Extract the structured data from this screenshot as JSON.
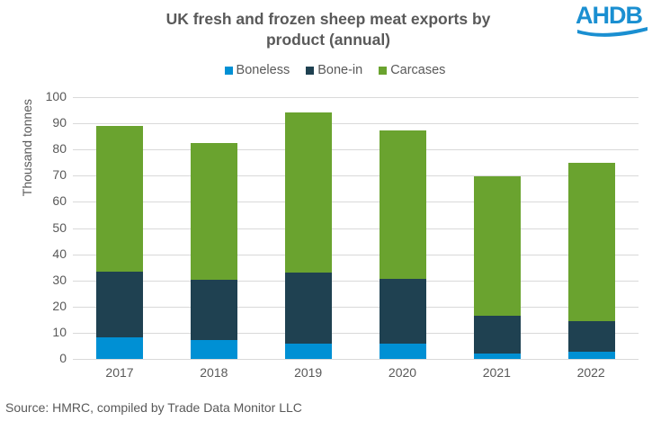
{
  "title": "UK fresh and frozen sheep meat exports by product (annual)",
  "title_lines": [
    "UK fresh and frozen sheep meat exports by",
    "product (annual)"
  ],
  "logo": {
    "text": "AHDB",
    "color": "#1a8fd1"
  },
  "legend": [
    {
      "label": "Boneless",
      "color": "#0090d4"
    },
    {
      "label": "Bone-in",
      "color": "#1f4151"
    },
    {
      "label": "Carcases",
      "color": "#6aa32f"
    }
  ],
  "source": "Source: HMRC, compiled by Trade Data Monitor LLC",
  "chart_data": {
    "type": "bar",
    "stacked": true,
    "title": "UK fresh and frozen sheep meat exports by product (annual)",
    "xlabel": "",
    "ylabel": "Thousand tonnes",
    "ylim": [
      0,
      100
    ],
    "yticks": [
      0,
      10,
      20,
      30,
      40,
      50,
      60,
      70,
      80,
      90,
      100
    ],
    "grid": true,
    "legend_position": "top",
    "categories": [
      "2017",
      "2018",
      "2019",
      "2020",
      "2021",
      "2022"
    ],
    "series": [
      {
        "name": "Boneless",
        "color": "#0090d4",
        "values": [
          8.2,
          7.3,
          5.8,
          6.0,
          2.1,
          2.7
        ]
      },
      {
        "name": "Bone-in",
        "color": "#1f4151",
        "values": [
          25.1,
          22.8,
          27.2,
          24.5,
          14.5,
          11.6
        ]
      },
      {
        "name": "Carcases",
        "color": "#6aa32f",
        "values": [
          55.7,
          52.3,
          61.3,
          56.9,
          53.2,
          60.7
        ]
      }
    ],
    "totals": [
      89.0,
      82.4,
      94.3,
      87.4,
      69.8,
      75.0
    ]
  }
}
